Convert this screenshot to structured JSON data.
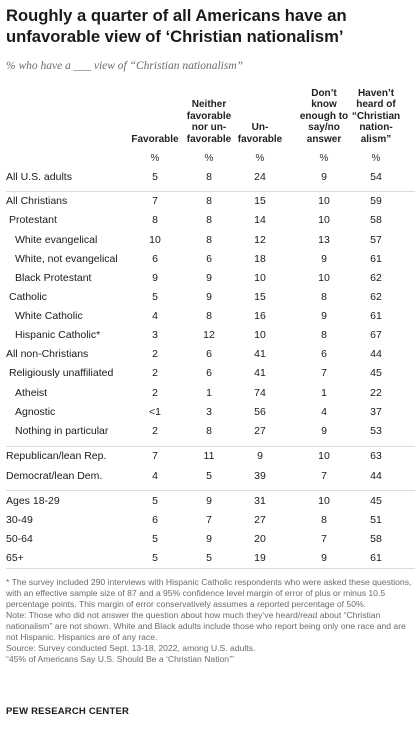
{
  "chart_data": {
    "type": "table",
    "title": "Roughly a quarter of all Americans have an unfavorable view of ‘Christian nationalism’",
    "subtitle": "% who have a ___ view of “Christian nationalism”",
    "columns": [
      {
        "key": "fav",
        "lines": [
          "Favorable"
        ]
      },
      {
        "key": "neither",
        "lines": [
          "Neither",
          "favorable",
          "nor un-",
          "favorable"
        ]
      },
      {
        "key": "unfav",
        "lines": [
          "Un-",
          "favorable"
        ]
      },
      {
        "key": "dk",
        "lines": [
          "Don’t",
          "know",
          "enough to",
          "say/no",
          "answer"
        ]
      },
      {
        "key": "never",
        "lines": [
          "Haven’t",
          "heard of",
          "“Christian",
          "nation-",
          "alism”"
        ]
      }
    ],
    "unit_label": "%",
    "rows": [
      {
        "label": "All U.S. adults",
        "indent": 0,
        "values": [
          "5",
          "8",
          "24",
          "9",
          "54"
        ]
      },
      {
        "label": "All Christians",
        "indent": 0,
        "values": [
          "7",
          "8",
          "15",
          "10",
          "59"
        ]
      },
      {
        "label": "Protestant",
        "indent": 1,
        "values": [
          "8",
          "8",
          "14",
          "10",
          "58"
        ]
      },
      {
        "label": "White evangelical",
        "indent": 2,
        "values": [
          "10",
          "8",
          "12",
          "13",
          "57"
        ]
      },
      {
        "label": "White, not evangelical",
        "indent": 2,
        "values": [
          "6",
          "6",
          "18",
          "9",
          "61"
        ]
      },
      {
        "label": "Black Protestant",
        "indent": 2,
        "values": [
          "9",
          "9",
          "10",
          "10",
          "62"
        ]
      },
      {
        "label": "Catholic",
        "indent": 1,
        "values": [
          "5",
          "9",
          "15",
          "8",
          "62"
        ]
      },
      {
        "label": "White Catholic",
        "indent": 2,
        "values": [
          "4",
          "8",
          "16",
          "9",
          "61"
        ]
      },
      {
        "label": "Hispanic Catholic*",
        "indent": 2,
        "values": [
          "3",
          "12",
          "10",
          "8",
          "67"
        ]
      },
      {
        "label": "All non-Christians",
        "indent": 0,
        "values": [
          "2",
          "6",
          "41",
          "6",
          "44"
        ]
      },
      {
        "label": "Religiously unaffiliated",
        "indent": 1,
        "values": [
          "2",
          "6",
          "41",
          "7",
          "45"
        ]
      },
      {
        "label": "Atheist",
        "indent": 2,
        "values": [
          "2",
          "1",
          "74",
          "1",
          "22"
        ]
      },
      {
        "label": "Agnostic",
        "indent": 2,
        "values": [
          "<1",
          "3",
          "56",
          "4",
          "37"
        ]
      },
      {
        "label": "Nothing in particular",
        "indent": 2,
        "values": [
          "2",
          "8",
          "27",
          "9",
          "53"
        ]
      },
      {
        "label": "Republican/lean Rep.",
        "indent": 0,
        "values": [
          "7",
          "11",
          "9",
          "10",
          "63"
        ]
      },
      {
        "label": "Democrat/lean Dem.",
        "indent": 0,
        "values": [
          "4",
          "5",
          "39",
          "7",
          "44"
        ]
      },
      {
        "label": "Ages 18-29",
        "indent": 0,
        "values": [
          "5",
          "9",
          "31",
          "10",
          "45"
        ]
      },
      {
        "label": "30-49",
        "indent": 0,
        "values": [
          "6",
          "7",
          "27",
          "8",
          "51"
        ]
      },
      {
        "label": "50-64",
        "indent": 0,
        "values": [
          "5",
          "9",
          "20",
          "7",
          "58"
        ]
      },
      {
        "label": "65+",
        "indent": 0,
        "values": [
          "5",
          "5",
          "19",
          "9",
          "61"
        ]
      }
    ]
  },
  "notes": [
    "* The survey included 290 interviews with Hispanic Catholic respondents who were asked these questions, with an effective sample size of 87 and a 95% confidence level margin of error of plus or minus 10.5 percentage points. This margin of error conservatively assumes a reported percentage of 50%.",
    "Note: Those who did not answer the question about how much they’ve heard/read about “Christian nationalism” are not shown. White and Black adults include those who report being only one race and are not Hispanic. Hispanics are of any race.",
    "Source: Survey conducted Sept. 13-18, 2022, among U.S. adults.",
    "“45% of Americans Say U.S. Should Be a ‘Christian Nation’”"
  ],
  "brand": "PEW RESEARCH CENTER"
}
